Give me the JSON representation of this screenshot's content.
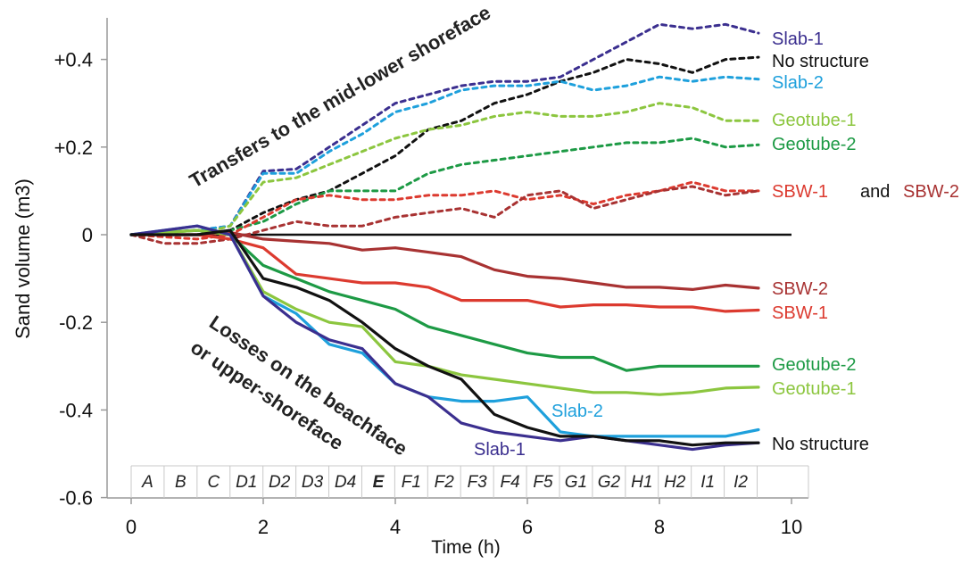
{
  "chart_data": {
    "type": "line",
    "title": "",
    "xlabel": "Time (h)",
    "ylabel": "Sand volume  (m3)",
    "xlim": [
      0,
      10
    ],
    "ylim": [
      -0.6,
      0.5
    ],
    "x_ticks": [
      "0",
      "2",
      "4",
      "6",
      "8",
      "10"
    ],
    "y_ticks": [
      "+0.4",
      "+0.2",
      "0",
      "-0.2",
      "-0.4",
      "-0.6"
    ],
    "y_tick_values": [
      0.4,
      0.2,
      0,
      -0.2,
      -0.4,
      -0.6
    ],
    "phases": [
      "A",
      "B",
      "C",
      "D1",
      "D2",
      "D3",
      "D4",
      "E",
      "F1",
      "F2",
      "F3",
      "F4",
      "F5",
      "G1",
      "G2",
      "H1",
      "H2",
      "I1",
      "I2"
    ],
    "phase_bold": "E",
    "annotations": {
      "transfers": "Transfers to the mid-lower shoreface",
      "losses_line1": "Losses on the beachface",
      "losses_line2": "or upper-shoreface"
    },
    "labels": {
      "slab1_top": "Slab-1",
      "nostruct_top": "No structure",
      "slab2_top": "Slab-2",
      "geotube1_top": "Geotube-1",
      "geotube2_top": "Geotube-2",
      "sbw1_top": "SBW-1",
      "and_word": "and",
      "sbw2_top": "SBW-2",
      "sbw2_bot": "SBW-2",
      "sbw1_bot": "SBW-1",
      "geotube2_bot": "Geotube-2",
      "geotube1_bot": "Geotube-1",
      "slab2_bot": "Slab-2",
      "slab1_bot": "Slab-1",
      "nostruct_bot": "No structure"
    },
    "colors": {
      "slab1": "#3b2f8f",
      "slab2": "#1ea0dc",
      "nostruct": "#111111",
      "geotube1": "#8cc63f",
      "geotube2": "#1d9a45",
      "sbw1": "#dc3a2f",
      "sbw2": "#a83232"
    },
    "series": [
      {
        "key": "slab1",
        "style": "dashed",
        "x": [
          0,
          1,
          1.5,
          2,
          2.5,
          3,
          3.5,
          4,
          4.5,
          5,
          5.5,
          6,
          6.5,
          7,
          7.5,
          8,
          8.5,
          9,
          9.5
        ],
        "y": [
          0,
          0.01,
          0.02,
          0.145,
          0.15,
          0.2,
          0.25,
          0.3,
          0.32,
          0.34,
          0.35,
          0.35,
          0.36,
          0.4,
          0.44,
          0.48,
          0.47,
          0.48,
          0.46
        ]
      },
      {
        "key": "nostruct",
        "style": "dashed",
        "x": [
          0,
          1,
          1.5,
          2,
          2.5,
          3,
          3.5,
          4,
          4.5,
          5,
          5.5,
          6,
          6.5,
          7,
          7.5,
          8,
          8.5,
          9,
          9.5
        ],
        "y": [
          0,
          0,
          0.01,
          0.05,
          0.08,
          0.1,
          0.14,
          0.18,
          0.24,
          0.26,
          0.3,
          0.32,
          0.35,
          0.37,
          0.4,
          0.39,
          0.37,
          0.4,
          0.405
        ]
      },
      {
        "key": "slab2",
        "style": "dashed",
        "x": [
          0,
          1,
          1.5,
          2,
          2.5,
          3,
          3.5,
          4,
          4.5,
          5,
          5.5,
          6,
          6.5,
          7,
          7.5,
          8,
          8.5,
          9,
          9.5
        ],
        "y": [
          0,
          0.01,
          0.02,
          0.14,
          0.14,
          0.19,
          0.23,
          0.28,
          0.3,
          0.33,
          0.34,
          0.34,
          0.35,
          0.33,
          0.34,
          0.36,
          0.35,
          0.36,
          0.355
        ]
      },
      {
        "key": "geotube1",
        "style": "dashed",
        "x": [
          0,
          1,
          1.5,
          2,
          2.5,
          3,
          3.5,
          4,
          4.5,
          5,
          5.5,
          6,
          6.5,
          7,
          7.5,
          8,
          8.5,
          9,
          9.5
        ],
        "y": [
          0,
          0,
          0.02,
          0.12,
          0.13,
          0.16,
          0.19,
          0.22,
          0.24,
          0.25,
          0.27,
          0.28,
          0.27,
          0.27,
          0.28,
          0.3,
          0.29,
          0.26,
          0.26
        ]
      },
      {
        "key": "geotube2",
        "style": "dashed",
        "x": [
          0,
          1,
          1.5,
          2,
          2.5,
          3,
          3.5,
          4,
          4.5,
          5,
          5.5,
          6,
          6.5,
          7,
          7.5,
          8,
          8.5,
          9,
          9.5
        ],
        "y": [
          0,
          0,
          0.01,
          0.03,
          0.07,
          0.1,
          0.1,
          0.1,
          0.14,
          0.16,
          0.17,
          0.18,
          0.19,
          0.2,
          0.21,
          0.21,
          0.22,
          0.2,
          0.205
        ]
      },
      {
        "key": "sbw1",
        "style": "dashed",
        "x": [
          0,
          1,
          1.5,
          2,
          2.5,
          3,
          3.5,
          4,
          4.5,
          5,
          5.5,
          6,
          6.5,
          7,
          7.5,
          8,
          8.5,
          9,
          9.5
        ],
        "y": [
          0,
          -0.01,
          0,
          0.04,
          0.08,
          0.09,
          0.08,
          0.08,
          0.09,
          0.09,
          0.1,
          0.08,
          0.09,
          0.07,
          0.09,
          0.1,
          0.12,
          0.1,
          0.1
        ]
      },
      {
        "key": "sbw2",
        "style": "dashed",
        "x": [
          0,
          0.5,
          1,
          1.5,
          2,
          2.5,
          3,
          3.5,
          4,
          4.5,
          5,
          5.5,
          6,
          6.5,
          7,
          7.5,
          8,
          8.5,
          9,
          9.5
        ],
        "y": [
          0,
          -0.02,
          -0.02,
          -0.01,
          0.01,
          0.03,
          0.02,
          0.02,
          0.04,
          0.05,
          0.06,
          0.04,
          0.09,
          0.1,
          0.06,
          0.08,
          0.1,
          0.11,
          0.09,
          0.1
        ]
      },
      {
        "key": "sbw2",
        "style": "solid",
        "x": [
          0,
          1,
          1.5,
          2,
          2.5,
          3,
          3.5,
          4,
          4.5,
          5,
          5.5,
          6,
          6.5,
          7,
          7.5,
          8,
          8.5,
          9,
          9.5
        ],
        "y": [
          0,
          0,
          0.005,
          -0.01,
          -0.015,
          -0.02,
          -0.035,
          -0.03,
          -0.04,
          -0.05,
          -0.08,
          -0.095,
          -0.1,
          -0.11,
          -0.12,
          -0.12,
          -0.125,
          -0.115,
          -0.122
        ]
      },
      {
        "key": "sbw1",
        "style": "solid",
        "x": [
          0,
          1,
          1.5,
          2,
          2.5,
          3,
          3.5,
          4,
          4.5,
          5,
          5.5,
          6,
          6.5,
          7,
          7.5,
          8,
          8.5,
          9,
          9.5
        ],
        "y": [
          0,
          0,
          -0.01,
          -0.03,
          -0.09,
          -0.1,
          -0.11,
          -0.11,
          -0.12,
          -0.15,
          -0.15,
          -0.15,
          -0.165,
          -0.16,
          -0.16,
          -0.165,
          -0.165,
          -0.175,
          -0.172
        ]
      },
      {
        "key": "geotube2",
        "style": "solid",
        "x": [
          0,
          1,
          1.5,
          2,
          2.5,
          3,
          3.5,
          4,
          4.5,
          5,
          5.5,
          6,
          6.5,
          7,
          7.5,
          8,
          8.5,
          9,
          9.5
        ],
        "y": [
          0,
          0.01,
          0,
          -0.07,
          -0.1,
          -0.13,
          -0.15,
          -0.17,
          -0.21,
          -0.23,
          -0.25,
          -0.27,
          -0.28,
          -0.28,
          -0.31,
          -0.3,
          -0.3,
          -0.3,
          -0.3
        ]
      },
      {
        "key": "geotube1",
        "style": "solid",
        "x": [
          0,
          1,
          1.5,
          2,
          2.5,
          3,
          3.5,
          4,
          4.5,
          5,
          5.5,
          6,
          6.5,
          7,
          7.5,
          8,
          8.5,
          9,
          9.5
        ],
        "y": [
          0,
          0.01,
          0,
          -0.13,
          -0.17,
          -0.2,
          -0.21,
          -0.29,
          -0.3,
          -0.32,
          -0.33,
          -0.34,
          -0.35,
          -0.36,
          -0.36,
          -0.365,
          -0.36,
          -0.35,
          -0.348
        ]
      },
      {
        "key": "slab2",
        "style": "solid",
        "x": [
          0,
          1,
          1.5,
          2,
          2.5,
          3,
          3.5,
          4,
          4.5,
          5,
          5.5,
          6,
          6.5,
          7,
          7.5,
          8,
          8.5,
          9,
          9.5
        ],
        "y": [
          0,
          0.02,
          0,
          -0.14,
          -0.18,
          -0.25,
          -0.27,
          -0.34,
          -0.37,
          -0.38,
          -0.38,
          -0.37,
          -0.45,
          -0.46,
          -0.46,
          -0.46,
          -0.46,
          -0.46,
          -0.445
        ]
      },
      {
        "key": "slab1",
        "style": "solid",
        "x": [
          0,
          1,
          1.5,
          2,
          2.5,
          3,
          3.5,
          4,
          4.5,
          5,
          5.5,
          6,
          6.5,
          7,
          7.5,
          8,
          8.5,
          9,
          9.5
        ],
        "y": [
          0,
          0.02,
          0,
          -0.14,
          -0.2,
          -0.24,
          -0.26,
          -0.34,
          -0.37,
          -0.43,
          -0.45,
          -0.46,
          -0.47,
          -0.46,
          -0.47,
          -0.48,
          -0.49,
          -0.48,
          -0.475
        ]
      },
      {
        "key": "nostruct",
        "style": "solid",
        "x": [
          0,
          1,
          1.5,
          2,
          2.5,
          3,
          3.5,
          4,
          4.5,
          5,
          5.5,
          6,
          6.5,
          7,
          7.5,
          8,
          8.5,
          9,
          9.5
        ],
        "y": [
          0,
          0,
          0.01,
          -0.1,
          -0.12,
          -0.15,
          -0.2,
          -0.26,
          -0.3,
          -0.33,
          -0.41,
          -0.44,
          -0.46,
          -0.46,
          -0.47,
          -0.47,
          -0.48,
          -0.475,
          -0.475
        ]
      }
    ]
  }
}
